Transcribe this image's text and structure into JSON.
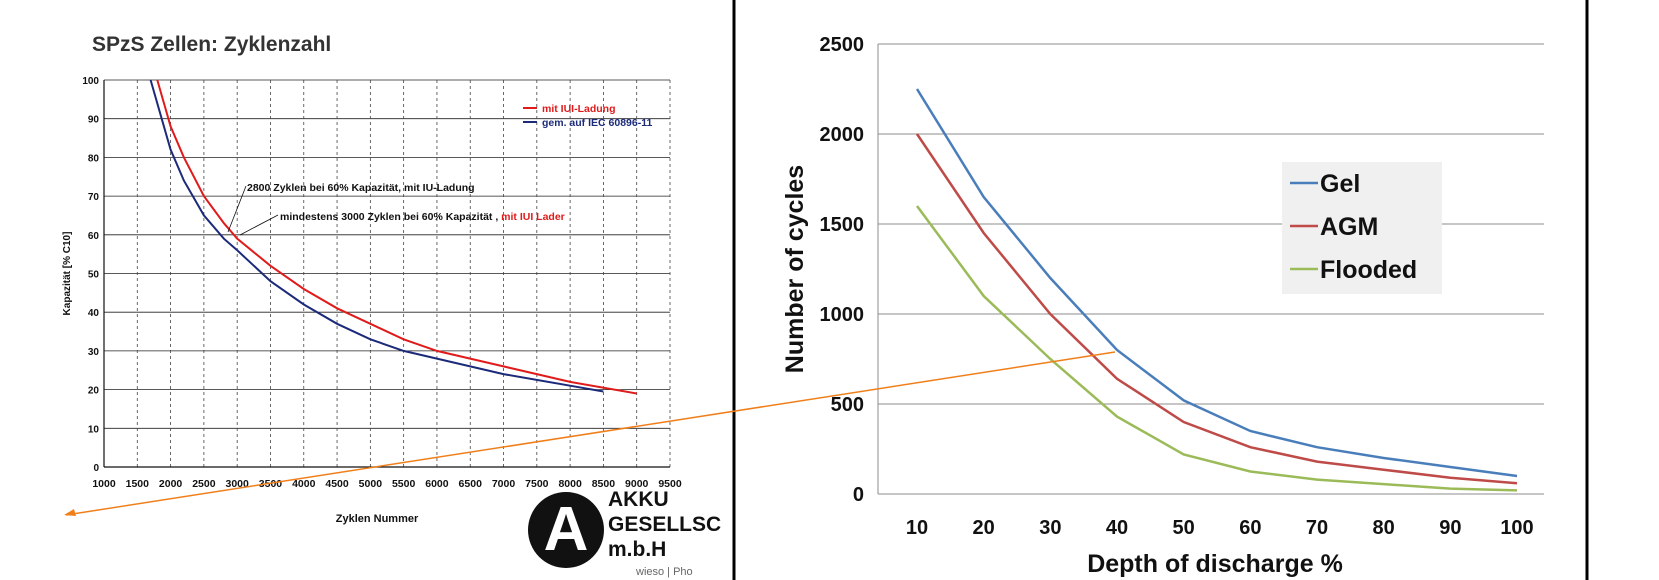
{
  "left_logo": {
    "line1": "AKKU",
    "line2": "GESELLSC",
    "line3": "m.b.H",
    "credit": "wieso | Pho"
  },
  "chart_data": [
    {
      "type": "line",
      "title": "SPzS Zellen: Zyklenzahl",
      "xlabel": "Zyklen Nummer",
      "ylabel": "Kapazität [% C10]",
      "xlim": [
        1000,
        9500
      ],
      "ylim": [
        0,
        100
      ],
      "xticks": [
        1000,
        1500,
        2000,
        2500,
        3000,
        3500,
        4000,
        4500,
        5000,
        5500,
        6000,
        6500,
        7000,
        7500,
        8000,
        8500,
        9000,
        9500
      ],
      "yticks": [
        0,
        10,
        20,
        30,
        40,
        50,
        60,
        70,
        80,
        90,
        100
      ],
      "grid": true,
      "legend_position": "top-right",
      "series": [
        {
          "name": "mit IUI-Ladung",
          "color": "#e01b1b",
          "x": [
            1800,
            2000,
            2200,
            2500,
            2800,
            3000,
            3500,
            4000,
            4500,
            5000,
            5500,
            6000,
            7000,
            8000,
            9000
          ],
          "y": [
            100,
            88,
            80,
            70,
            63,
            59,
            52,
            46,
            41,
            37,
            33,
            30,
            26,
            22,
            19
          ]
        },
        {
          "name": "gem. auf IEC 60896-11",
          "color": "#1c2a7a",
          "x": [
            1700,
            2000,
            2200,
            2500,
            2800,
            3000,
            3500,
            4000,
            4500,
            5000,
            5500,
            6000,
            7000,
            8000,
            8500
          ],
          "y": [
            100,
            82,
            74,
            65,
            59,
            56,
            48,
            42,
            37,
            33,
            30,
            28,
            24,
            21,
            19.5
          ]
        }
      ],
      "annotations": [
        {
          "text": "2800 Zyklen bei 60% Kapazität, mit IU-Ladung"
        },
        {
          "text": "mindestens 3000 Zyklen bei 60% Kapazität ,",
          "highlight": "mit IUI Lader",
          "highlight_color": "#e01b1b"
        }
      ]
    },
    {
      "type": "line",
      "title": "",
      "xlabel": "Depth of discharge %",
      "ylabel": "Number of cycles",
      "ylim": [
        0,
        2500
      ],
      "yticks": [
        0,
        500,
        1000,
        1500,
        2000,
        2500
      ],
      "categories": [
        10,
        20,
        30,
        40,
        50,
        60,
        70,
        80,
        90,
        100
      ],
      "grid": true,
      "legend_position": "middle-right",
      "series": [
        {
          "name": "Gel",
          "color": "#4a7ebb",
          "values": [
            2250,
            1650,
            1200,
            800,
            520,
            350,
            260,
            200,
            150,
            100
          ]
        },
        {
          "name": "AGM",
          "color": "#be4b48",
          "values": [
            2000,
            1450,
            1000,
            640,
            400,
            260,
            180,
            135,
            90,
            60
          ]
        },
        {
          "name": "Flooded",
          "color": "#9bbb59",
          "values": [
            1600,
            1100,
            750,
            430,
            220,
            125,
            80,
            55,
            30,
            20
          ]
        }
      ]
    }
  ],
  "overlay": {
    "arrow_color": "#f07f1a",
    "divider_color": "#000000"
  }
}
